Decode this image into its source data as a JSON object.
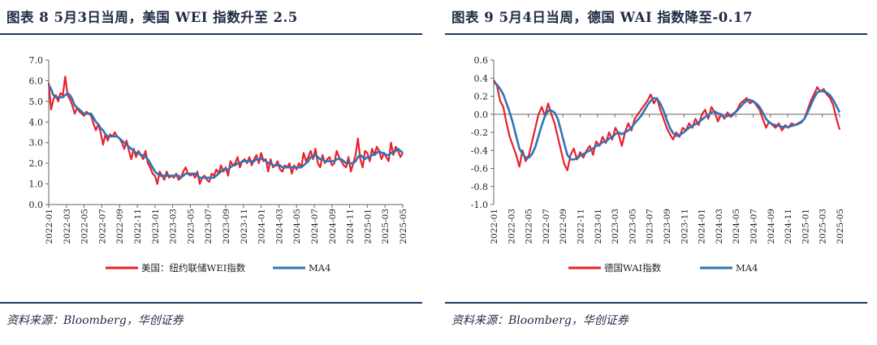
{
  "panels": [
    {
      "title": "图表 8   5月3日当周，美国 WEI 指数升至 2.5",
      "source": "资料来源：Bloomberg，华创证券"
    },
    {
      "title": "图表 9   5月4日当周，德国 WAI 指数降至-0.17",
      "source": "资料来源：Bloomberg，华创证券"
    }
  ],
  "chart_data": [
    {
      "type": "line",
      "title": "图表 8   5月3日当周，美国 WEI 指数升至 2.5",
      "xlabel": "",
      "ylabel": "",
      "ylim": [
        0,
        7
      ],
      "yticks": [
        "0.0",
        "1.0",
        "2.0",
        "3.0",
        "4.0",
        "5.0",
        "6.0",
        "7.0"
      ],
      "xticks": [
        "2022-01",
        "2022-03",
        "2022-05",
        "2022-07",
        "2022-09",
        "2022-11",
        "2023-01",
        "2023-03",
        "2023-05",
        "2023-07",
        "2023-09",
        "2023-11",
        "2024-01",
        "2024-03",
        "2024-05",
        "2024-07",
        "2024-09",
        "2024-11",
        "2025-01",
        "2025-03",
        "2025-05"
      ],
      "legend_position": "bottom",
      "series": [
        {
          "name": "美国：纽约联储WEI指数",
          "color": "#e8202a",
          "values": [
            5.9,
            4.6,
            5.1,
            5.3,
            5.0,
            5.4,
            5.3,
            6.2,
            5.3,
            5.1,
            4.8,
            4.4,
            4.7,
            4.5,
            4.4,
            4.3,
            4.5,
            4.4,
            4.3,
            3.9,
            3.6,
            3.9,
            3.5,
            2.9,
            3.4,
            3.1,
            3.4,
            3.3,
            3.5,
            3.3,
            3.2,
            3.0,
            2.7,
            3.1,
            2.6,
            2.2,
            2.7,
            2.3,
            2.6,
            2.4,
            2.2,
            2.6,
            2.0,
            1.8,
            1.5,
            1.4,
            1.0,
            1.6,
            1.4,
            1.2,
            1.6,
            1.3,
            1.4,
            1.3,
            1.5,
            1.2,
            1.3,
            1.6,
            1.8,
            1.5,
            1.4,
            1.5,
            1.3,
            1.6,
            1.0,
            1.3,
            1.4,
            1.2,
            1.1,
            1.5,
            1.4,
            1.7,
            1.5,
            1.9,
            1.6,
            1.8,
            1.4,
            2.1,
            1.9,
            2.0,
            2.3,
            1.8,
            2.1,
            2.2,
            2.0,
            2.3,
            1.9,
            2.2,
            2.4,
            2.0,
            2.5,
            2.1,
            2.2,
            1.6,
            2.2,
            1.8,
            1.9,
            2.1,
            1.7,
            1.6,
            1.9,
            1.8,
            2.0,
            1.5,
            1.9,
            1.7,
            2.0,
            1.8,
            2.5,
            2.1,
            2.3,
            2.6,
            2.2,
            2.7,
            2.0,
            1.8,
            2.4,
            2.0,
            2.2,
            2.3,
            1.9,
            2.0,
            2.6,
            2.3,
            2.1,
            1.9,
            1.8,
            2.3,
            1.6,
            2.0,
            2.4,
            3.2,
            2.2,
            1.8,
            2.6,
            2.5,
            2.1,
            2.7,
            2.4,
            2.8,
            2.6,
            2.2,
            2.5,
            2.3,
            2.1,
            3.0,
            2.4,
            2.8,
            2.6,
            2.3,
            2.5
          ]
        },
        {
          "name": "MA4",
          "color": "#2e75b6",
          "values": [
            5.8,
            5.6,
            5.3,
            5.2,
            5.2,
            5.2,
            5.2,
            5.3,
            5.4,
            5.3,
            5.1,
            4.8,
            4.7,
            4.6,
            4.5,
            4.4,
            4.4,
            4.4,
            4.4,
            4.2,
            4.0,
            3.9,
            3.7,
            3.6,
            3.4,
            3.3,
            3.3,
            3.3,
            3.3,
            3.3,
            3.2,
            3.1,
            3.0,
            2.9,
            2.8,
            2.7,
            2.6,
            2.5,
            2.5,
            2.4,
            2.4,
            2.3,
            2.2,
            2.0,
            1.8,
            1.6,
            1.5,
            1.4,
            1.4,
            1.4,
            1.4,
            1.4,
            1.4,
            1.4,
            1.4,
            1.4,
            1.3,
            1.4,
            1.5,
            1.5,
            1.5,
            1.5,
            1.5,
            1.4,
            1.3,
            1.3,
            1.3,
            1.3,
            1.3,
            1.3,
            1.3,
            1.4,
            1.5,
            1.6,
            1.7,
            1.7,
            1.7,
            1.8,
            1.9,
            1.9,
            2.0,
            2.0,
            2.1,
            2.1,
            2.1,
            2.1,
            2.1,
            2.1,
            2.2,
            2.2,
            2.2,
            2.2,
            2.1,
            2.0,
            2.0,
            1.9,
            1.9,
            1.9,
            1.9,
            1.8,
            1.8,
            1.8,
            1.8,
            1.8,
            1.8,
            1.8,
            1.8,
            1.8,
            1.9,
            2.0,
            2.1,
            2.3,
            2.3,
            2.4,
            2.3,
            2.2,
            2.2,
            2.1,
            2.1,
            2.1,
            2.1,
            2.1,
            2.2,
            2.2,
            2.2,
            2.1,
            2.0,
            2.0,
            2.0,
            2.0,
            2.1,
            2.3,
            2.4,
            2.3,
            2.2,
            2.3,
            2.3,
            2.4,
            2.4,
            2.5,
            2.6,
            2.5,
            2.5,
            2.4,
            2.4,
            2.5,
            2.5,
            2.6,
            2.7,
            2.6,
            2.5
          ]
        }
      ]
    },
    {
      "type": "line",
      "title": "图表 9   5月4日当周，德国 WAI 指数降至-0.17",
      "xlabel": "",
      "ylabel": "",
      "ylim": [
        -1.0,
        0.6
      ],
      "yticks": [
        "-1.0",
        "-0.8",
        "-0.6",
        "-0.4",
        "-0.2",
        "0.0",
        "0.2",
        "0.4",
        "0.6"
      ],
      "xticks": [
        "2022-01",
        "2022-03",
        "2022-05",
        "2022-07",
        "2022-09",
        "2022-11",
        "2023-01",
        "2023-03",
        "2023-05",
        "2023-07",
        "2023-09",
        "2023-11",
        "2024-01",
        "2024-03",
        "2024-05",
        "2024-07",
        "2024-09",
        "2024-11",
        "2025-01",
        "2025-03",
        "2025-05"
      ],
      "legend_position": "bottom",
      "series": [
        {
          "name": "德国WAI指数",
          "color": "#e8202a",
          "values": [
            0.38,
            0.32,
            0.15,
            0.08,
            -0.1,
            -0.25,
            -0.35,
            -0.45,
            -0.58,
            -0.4,
            -0.52,
            -0.45,
            -0.3,
            -0.15,
            0.0,
            0.08,
            -0.02,
            0.12,
            0.0,
            -0.1,
            -0.25,
            -0.4,
            -0.55,
            -0.62,
            -0.45,
            -0.38,
            -0.5,
            -0.42,
            -0.48,
            -0.4,
            -0.35,
            -0.45,
            -0.3,
            -0.35,
            -0.25,
            -0.32,
            -0.2,
            -0.28,
            -0.15,
            -0.22,
            -0.35,
            -0.2,
            -0.1,
            -0.18,
            -0.05,
            0.0,
            0.05,
            0.1,
            0.15,
            0.22,
            0.12,
            0.18,
            0.05,
            -0.05,
            -0.15,
            -0.22,
            -0.28,
            -0.2,
            -0.25,
            -0.15,
            -0.18,
            -0.1,
            -0.15,
            -0.05,
            -0.12,
            0.0,
            0.05,
            -0.05,
            0.08,
            0.02,
            -0.08,
            0.0,
            -0.05,
            0.02,
            -0.03,
            0.0,
            0.05,
            0.12,
            0.15,
            0.18,
            0.12,
            0.15,
            0.1,
            0.05,
            -0.05,
            -0.15,
            -0.08,
            -0.12,
            -0.15,
            -0.1,
            -0.18,
            -0.12,
            -0.15,
            -0.1,
            -0.12,
            -0.1,
            -0.08,
            -0.05,
            0.05,
            0.15,
            0.22,
            0.3,
            0.25,
            0.28,
            0.22,
            0.18,
            0.1,
            -0.05,
            -0.17
          ]
        },
        {
          "name": "MA4",
          "color": "#2e75b6",
          "values": [
            0.35,
            0.33,
            0.28,
            0.22,
            0.12,
            0.02,
            -0.1,
            -0.24,
            -0.38,
            -0.44,
            -0.48,
            -0.48,
            -0.44,
            -0.36,
            -0.24,
            -0.12,
            -0.02,
            0.04,
            0.04,
            0.02,
            -0.05,
            -0.18,
            -0.32,
            -0.45,
            -0.5,
            -0.5,
            -0.49,
            -0.46,
            -0.44,
            -0.42,
            -0.4,
            -0.38,
            -0.35,
            -0.34,
            -0.31,
            -0.3,
            -0.27,
            -0.25,
            -0.22,
            -0.2,
            -0.22,
            -0.2,
            -0.18,
            -0.15,
            -0.1,
            -0.06,
            -0.02,
            0.04,
            0.1,
            0.15,
            0.18,
            0.17,
            0.12,
            0.04,
            -0.06,
            -0.15,
            -0.21,
            -0.24,
            -0.23,
            -0.21,
            -0.18,
            -0.15,
            -0.13,
            -0.11,
            -0.09,
            -0.06,
            -0.03,
            -0.01,
            0.02,
            0.03,
            0.01,
            0.0,
            -0.03,
            -0.02,
            -0.01,
            0.01,
            0.04,
            0.08,
            0.12,
            0.15,
            0.16,
            0.14,
            0.12,
            0.08,
            0.02,
            -0.05,
            -0.09,
            -0.11,
            -0.12,
            -0.13,
            -0.14,
            -0.14,
            -0.14,
            -0.13,
            -0.12,
            -0.11,
            -0.09,
            -0.05,
            0.02,
            0.1,
            0.18,
            0.24,
            0.26,
            0.25,
            0.24,
            0.21,
            0.16,
            0.09,
            0.02
          ]
        }
      ]
    }
  ]
}
